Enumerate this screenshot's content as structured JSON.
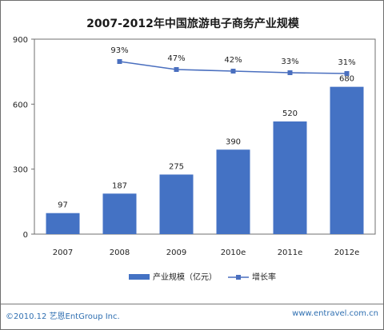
{
  "chart_data": {
    "type": "bar",
    "title": "2007-2012年中国旅游电子商务产业规模",
    "categories": [
      "2007",
      "2008",
      "2009",
      "2010e",
      "2011e",
      "2012e"
    ],
    "series": [
      {
        "name": "产业规模（亿元）",
        "type": "bar",
        "values": [
          97,
          187,
          275,
          390,
          520,
          680
        ],
        "labels": [
          "97",
          "187",
          "275",
          "390",
          "520",
          "680"
        ]
      },
      {
        "name": "增长率",
        "type": "line",
        "values": [
          null,
          93,
          47,
          42,
          33,
          31
        ],
        "labels": [
          "",
          "93%",
          "47%",
          "42%",
          "33%",
          "31%"
        ]
      }
    ],
    "ylim": [
      0,
      900
    ],
    "yticks": [
      0,
      300,
      600,
      900
    ],
    "ytick_labels": [
      "0",
      "300",
      "600",
      "900"
    ],
    "grid": false,
    "legend_position": "bottom"
  },
  "footer": {
    "copyright": "©2010.12 艺恩EntGroup Inc.",
    "website": "www.entravel.com.cn"
  },
  "colors": {
    "bar": "#4472c4",
    "line": "#4a6fbf",
    "plot_border": "#6f6f6f"
  }
}
